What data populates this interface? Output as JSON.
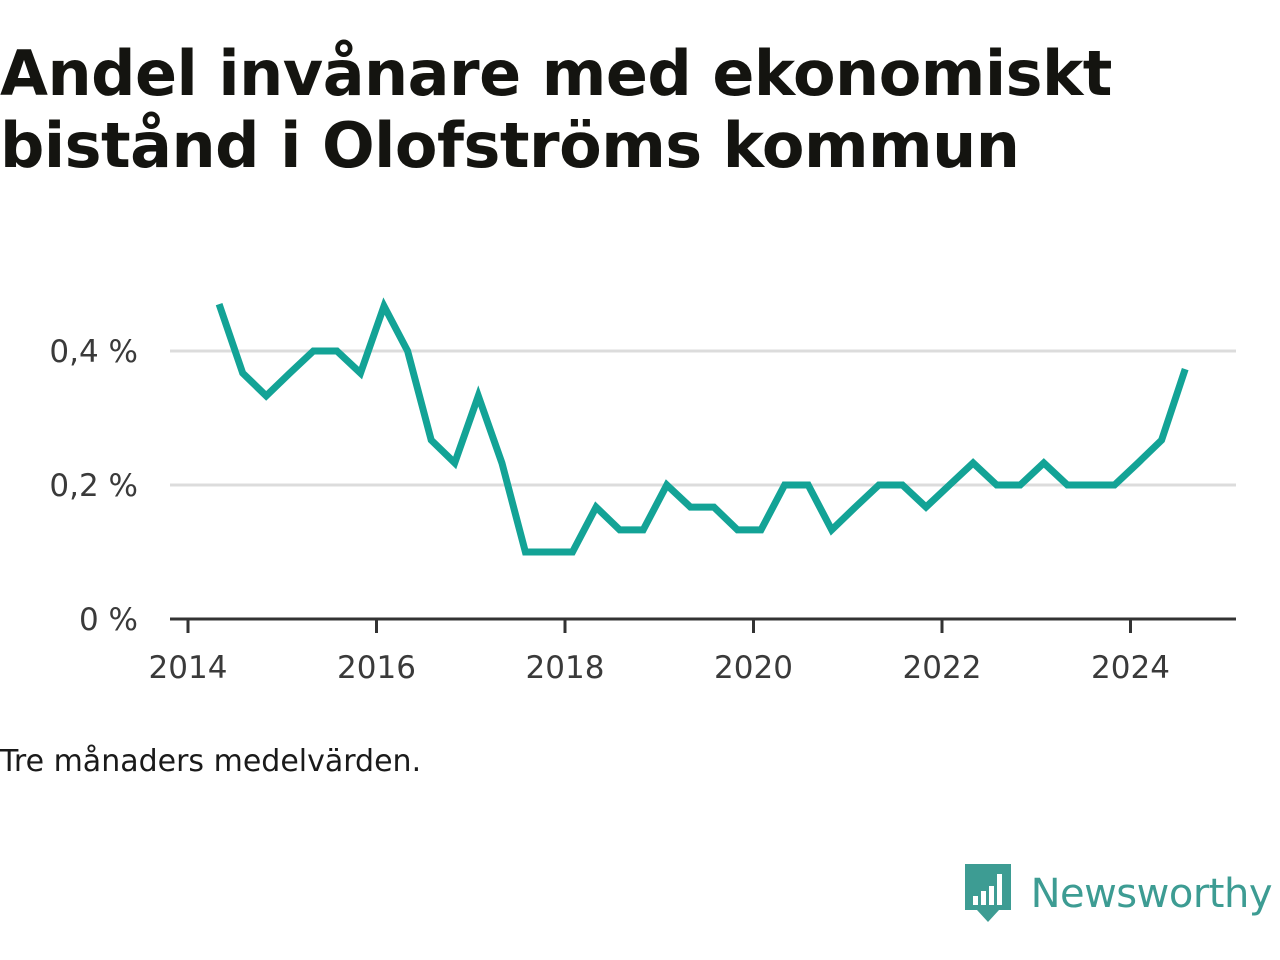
{
  "chart_data": {
    "type": "line",
    "title": "Andel invånare med ekonomiskt bistånd i Olofströms kommun",
    "xlabel": "",
    "ylabel": "",
    "x_ticks": [
      "2014",
      "2016",
      "2018",
      "2020",
      "2022",
      "2024"
    ],
    "y_ticks": [
      "0 %",
      "0,2 %",
      "0,4 %"
    ],
    "xlim": [
      2014.0,
      2025.1
    ],
    "ylim": [
      0,
      0.5
    ],
    "grid": "horizontal",
    "series": [
      {
        "color": "#13a396",
        "x": [
          2014.33,
          2014.58,
          2014.83,
          2015.08,
          2015.33,
          2015.58,
          2015.83,
          2016.08,
          2016.33,
          2016.58,
          2016.83,
          2017.08,
          2017.33,
          2017.58,
          2017.83,
          2018.08,
          2018.33,
          2018.58,
          2018.83,
          2019.08,
          2019.33,
          2019.58,
          2019.83,
          2020.08,
          2020.33,
          2020.58,
          2020.83,
          2021.08,
          2021.33,
          2021.58,
          2021.83,
          2022.08,
          2022.33,
          2022.58,
          2022.83,
          2023.08,
          2023.33,
          2023.58,
          2023.83,
          2024.08,
          2024.33,
          2024.58
        ],
        "values": [
          0.47,
          0.367,
          0.333,
          0.367,
          0.4,
          0.4,
          0.367,
          0.467,
          0.4,
          0.267,
          0.233,
          0.333,
          0.233,
          0.1,
          0.1,
          0.1,
          0.167,
          0.133,
          0.133,
          0.2,
          0.167,
          0.167,
          0.133,
          0.133,
          0.2,
          0.2,
          0.133,
          0.167,
          0.2,
          0.2,
          0.167,
          0.2,
          0.233,
          0.2,
          0.2,
          0.233,
          0.2,
          0.2,
          0.2,
          0.233,
          0.267,
          0.373
        ]
      }
    ]
  },
  "note": "Tre månaders medelvärden.",
  "brand": {
    "name": "Newsworthy",
    "icon": "newsworthy-logo-icon",
    "color": "#3d9c93"
  },
  "colors": {
    "line": "#13a396",
    "grid": "#dcdcdc",
    "axis": "#333333",
    "text": "#3a3a3a"
  }
}
